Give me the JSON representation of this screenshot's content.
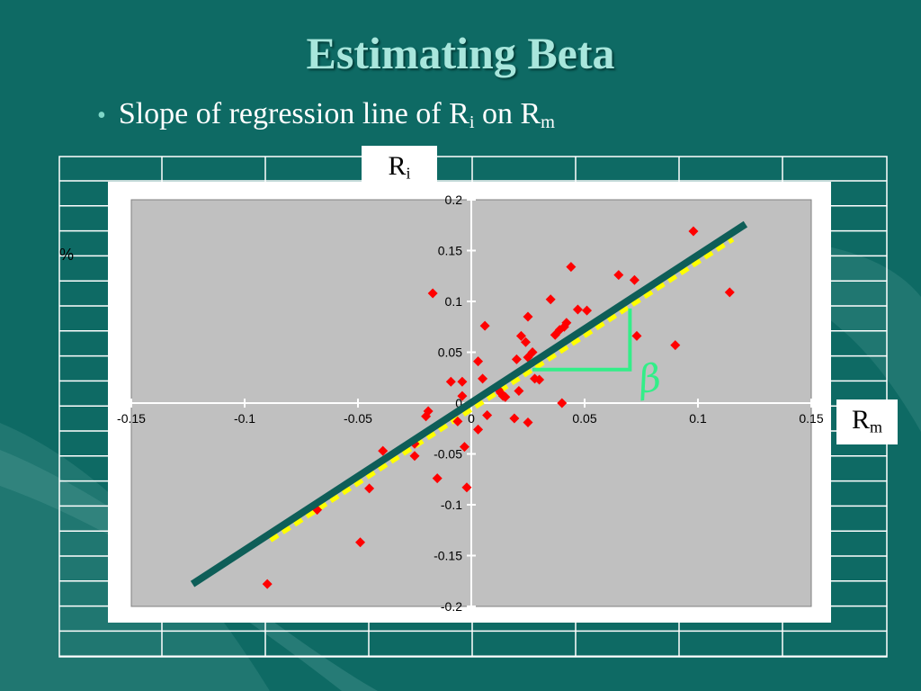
{
  "slide": {
    "title": "Estimating Beta",
    "bullet": {
      "text_prefix": "Slope of regression line of R",
      "sub_i": "i",
      "middle": " on R",
      "sub_m": "m"
    },
    "y_axis_box": {
      "base": "R",
      "sub": "i"
    },
    "x_axis_box": {
      "base": "R",
      "sub": "m"
    },
    "percent_label": "%",
    "beta_symbol": "β"
  },
  "colors": {
    "background": "#0e6a64",
    "title": "#a8e6dc",
    "plot_area": "#c0c0c0",
    "points": "#ff0000",
    "fit_band": "#ffff00",
    "regression_line": "#0e5e58",
    "beta_annotation": "#33ee88"
  },
  "chart_data": {
    "type": "scatter",
    "title": "",
    "xlabel": "",
    "ylabel": "",
    "xlim": [
      -0.15,
      0.15
    ],
    "ylim": [
      -0.2,
      0.2
    ],
    "x_ticks": [
      -0.15,
      -0.1,
      -0.05,
      0,
      0.05,
      0.1,
      0.15
    ],
    "x_tick_labels": [
      "-0.15",
      "-0.1",
      "-0.05",
      "0",
      "0.05",
      "0.1",
      "0.15"
    ],
    "y_ticks": [
      -0.2,
      -0.15,
      -0.1,
      -0.05,
      0,
      0.05,
      0.1,
      0.15,
      0.2
    ],
    "y_tick_labels": [
      "-0.2",
      "-0.15",
      "-0.1",
      "-0.05",
      "0",
      "0.05",
      "0.1",
      "0.15",
      "0.2"
    ],
    "grid": false,
    "points": [
      [
        -0.09,
        -0.178
      ],
      [
        -0.068,
        -0.105
      ],
      [
        -0.049,
        -0.137
      ],
      [
        -0.045,
        -0.084
      ],
      [
        -0.039,
        -0.047
      ],
      [
        -0.025,
        -0.04
      ],
      [
        -0.025,
        -0.052
      ],
      [
        -0.02,
        -0.013
      ],
      [
        -0.019,
        -0.008
      ],
      [
        -0.017,
        0.108
      ],
      [
        -0.015,
        -0.074
      ],
      [
        -0.009,
        0.021
      ],
      [
        -0.006,
        -0.018
      ],
      [
        -0.004,
        0.007
      ],
      [
        -0.004,
        0.021
      ],
      [
        -0.003,
        -0.043
      ],
      [
        -0.002,
        -0.083
      ],
      [
        0.003,
        -0.026
      ],
      [
        0.003,
        0.041
      ],
      [
        0.005,
        0.024
      ],
      [
        0.006,
        0.076
      ],
      [
        0.007,
        -0.012
      ],
      [
        0.012,
        0.013
      ],
      [
        0.013,
        0.01
      ],
      [
        0.014,
        0.007
      ],
      [
        0.015,
        0.006
      ],
      [
        0.019,
        -0.015
      ],
      [
        0.02,
        0.043
      ],
      [
        0.021,
        0.012
      ],
      [
        0.022,
        0.066
      ],
      [
        0.024,
        0.06
      ],
      [
        0.025,
        0.085
      ],
      [
        0.025,
        0.045
      ],
      [
        0.025,
        -0.019
      ],
      [
        0.027,
        0.05
      ],
      [
        0.028,
        0.024
      ],
      [
        0.03,
        0.023
      ],
      [
        0.035,
        0.102
      ],
      [
        0.037,
        0.067
      ],
      [
        0.039,
        0.072
      ],
      [
        0.04,
        0.0
      ],
      [
        0.041,
        0.075
      ],
      [
        0.042,
        0.079
      ],
      [
        0.044,
        0.134
      ],
      [
        0.047,
        0.092
      ],
      [
        0.051,
        0.091
      ],
      [
        0.065,
        0.126
      ],
      [
        0.072,
        0.121
      ],
      [
        0.073,
        0.066
      ],
      [
        0.09,
        0.057
      ],
      [
        0.098,
        0.169
      ],
      [
        0.114,
        0.109
      ]
    ],
    "regression_line": [
      [
        -0.123,
        -0.178
      ],
      [
        0.121,
        0.176
      ]
    ],
    "fit_band_x": [
      -0.09,
      0.114
    ],
    "beta_triangle": {
      "x0": 0.027,
      "x1": 0.07,
      "y0": 0.033,
      "y1": 0.093
    }
  }
}
